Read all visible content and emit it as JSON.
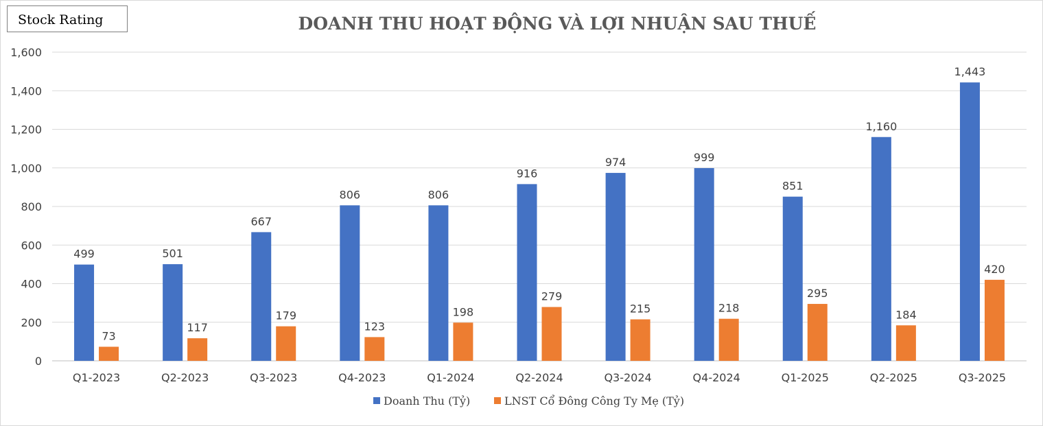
{
  "badge": {
    "label": "Stock Rating"
  },
  "chart_data": {
    "type": "bar",
    "title": "DOANH THU HOẠT ĐỘNG VÀ LỢI NHUẬN SAU THUẾ",
    "xlabel": "",
    "ylabel": "",
    "ylim": [
      0,
      1600
    ],
    "yticks": [
      0,
      200,
      400,
      600,
      800,
      1000,
      1200,
      1400,
      1600
    ],
    "ytick_labels": [
      "0",
      "200",
      "400",
      "600",
      "800",
      "1,000",
      "1,200",
      "1,400",
      "1,600"
    ],
    "grid": true,
    "legend_position": "bottom",
    "categories": [
      "Q1-2023",
      "Q2-2023",
      "Q3-2023",
      "Q4-2023",
      "Q1-2024",
      "Q2-2024",
      "Q3-2024",
      "Q4-2024",
      "Q1-2025",
      "Q2-2025",
      "Q3-2025"
    ],
    "series": [
      {
        "name": "Doanh Thu (Tỷ)",
        "color": "#4472c4",
        "values": [
          499,
          501,
          667,
          806,
          806,
          916,
          974,
          999,
          851,
          1160,
          1443
        ],
        "labels": [
          "499",
          "501",
          "667",
          "806",
          "806",
          "916",
          "974",
          "999",
          "851",
          "1,160",
          "1,443"
        ]
      },
      {
        "name": "LNST Cổ Đông Công Ty Mẹ (Tỷ)",
        "color": "#ed7d31",
        "values": [
          73,
          117,
          179,
          123,
          198,
          279,
          215,
          218,
          295,
          184,
          420
        ],
        "labels": [
          "73",
          "117",
          "179",
          "123",
          "198",
          "279",
          "215",
          "218",
          "295",
          "184",
          "420"
        ]
      }
    ]
  }
}
